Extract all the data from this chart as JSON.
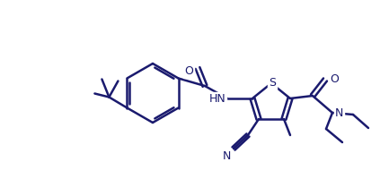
{
  "bg_color": "#ffffff",
  "line_color": "#1a1a6e",
  "line_width": 1.8,
  "figsize": [
    4.23,
    2.19
  ],
  "dpi": 100,
  "xlim": [
    0,
    423
  ],
  "ylim": [
    0,
    219
  ]
}
